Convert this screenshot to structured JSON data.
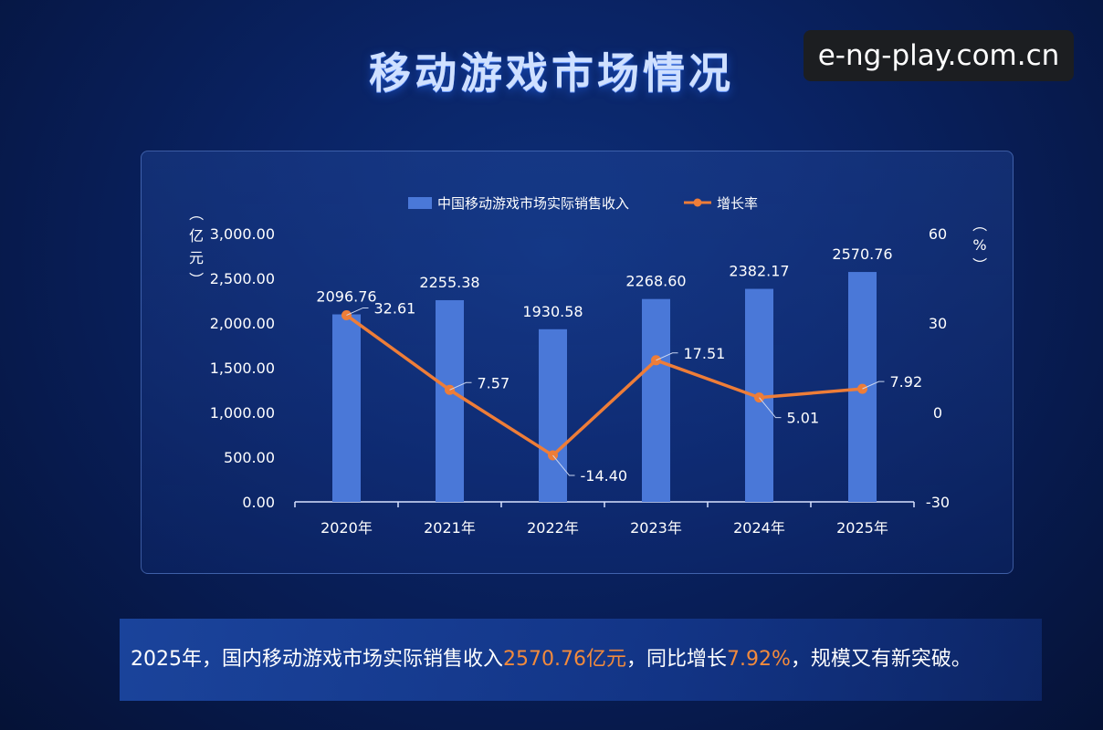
{
  "page": {
    "title": "移动游戏市场情况",
    "watermark": "e-ng-play.com.cn"
  },
  "summary": {
    "part1": "2025年，国内移动游戏市场实际销售收入",
    "highlight1": "2570.76亿元",
    "part2": "，同比增长",
    "highlight2": "7.92%",
    "part3": "，规模又有新突破。"
  },
  "colors": {
    "bar": "#4a78d8",
    "line": "#ee7d38",
    "text": "#ffffff",
    "highlight": "#f28a3c"
  },
  "chart_data": {
    "type": "bar",
    "categories": [
      "2020年",
      "2021年",
      "2022年",
      "2023年",
      "2024年",
      "2025年"
    ],
    "series": [
      {
        "name": "中国移动游戏市场实际销售收入",
        "type": "bar",
        "axis": "left",
        "values": [
          2096.76,
          2255.38,
          1930.58,
          2268.6,
          2382.17,
          2570.76
        ],
        "labels": [
          "2096.76",
          "2255.38",
          "1930.58",
          "2268.60",
          "2382.17",
          "2570.76"
        ]
      },
      {
        "name": "增长率",
        "type": "line",
        "axis": "right",
        "values": [
          32.61,
          7.57,
          -14.4,
          17.51,
          5.01,
          7.92
        ],
        "labels": [
          "32.61",
          "7.57",
          "-14.40",
          "17.51",
          "5.01",
          "7.92"
        ]
      }
    ],
    "left_axis": {
      "unit_chars": [
        "（",
        "亿",
        "元",
        "）"
      ],
      "ticks": [
        "0.00",
        "500.00",
        "1,000.00",
        "1,500.00",
        "2,000.00",
        "2,500.00",
        "3,000.00"
      ],
      "range": [
        0,
        3000
      ]
    },
    "right_axis": {
      "unit_chars": [
        "（",
        "%",
        "）"
      ],
      "ticks": [
        "-30",
        "0",
        "30",
        "60"
      ],
      "range": [
        -30,
        60
      ]
    },
    "legend_position": "top-center",
    "grid": false
  }
}
